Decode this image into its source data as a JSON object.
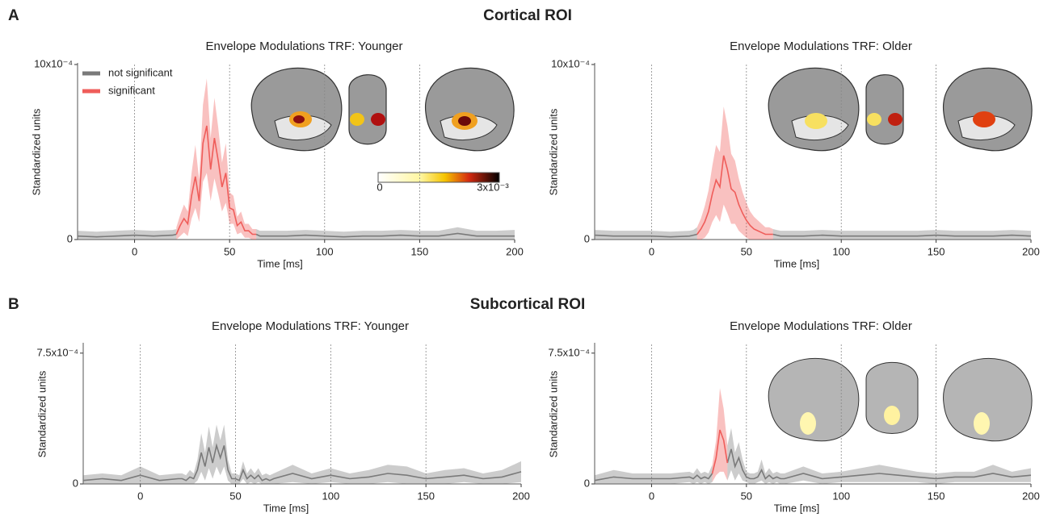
{
  "panels": [
    {
      "letter": "A",
      "title": "Cortical ROI"
    },
    {
      "letter": "B",
      "title": "Subcortical ROI"
    }
  ],
  "colorbar": {
    "min_label": "0",
    "max_label": "3x10⁻³"
  },
  "chart_data": [
    {
      "type": "line",
      "title": "Envelope Modulations TRF: Younger",
      "xlabel": "Time [ms]",
      "ylabel": "Standardized units",
      "xlim": [
        -30,
        200
      ],
      "xticks": [
        0,
        50,
        100,
        150,
        200
      ],
      "ylim": [
        0,
        10
      ],
      "yticks": [
        0,
        {
          "value": 10,
          "label": "10x10⁻⁴"
        }
      ],
      "legend": "upper left",
      "vlines": true,
      "x": [
        -30,
        -20,
        -10,
        0,
        10,
        20,
        22,
        24,
        26,
        28,
        30,
        32,
        34,
        36,
        38,
        40,
        42,
        44,
        46,
        48,
        50,
        52,
        54,
        56,
        58,
        60,
        62,
        64,
        66,
        68,
        70,
        80,
        90,
        100,
        110,
        120,
        130,
        140,
        150,
        160,
        170,
        180,
        190,
        200
      ],
      "series": [
        {
          "name": "not significant",
          "color": "#7a7a7a",
          "values": [
            0.2,
            0.15,
            0.2,
            0.25,
            0.2,
            0.25,
            0.3,
            null,
            null,
            null,
            null,
            null,
            null,
            null,
            null,
            null,
            null,
            null,
            null,
            null,
            null,
            null,
            null,
            null,
            null,
            null,
            null,
            0.3,
            0.2,
            0.2,
            0.2,
            0.2,
            0.25,
            0.2,
            0.15,
            0.2,
            0.2,
            0.25,
            0.2,
            0.2,
            0.35,
            0.2,
            0.2,
            0.2
          ],
          "errors": [
            0.3,
            0.3,
            0.3,
            0.3,
            0.3,
            0.3,
            0.3,
            null,
            null,
            null,
            null,
            null,
            null,
            null,
            null,
            null,
            null,
            null,
            null,
            null,
            null,
            null,
            null,
            null,
            null,
            null,
            null,
            0.3,
            0.3,
            0.3,
            0.3,
            0.3,
            0.3,
            0.3,
            0.3,
            0.3,
            0.3,
            0.3,
            0.3,
            0.3,
            0.35,
            0.3,
            0.3,
            0.35
          ]
        },
        {
          "name": "significant",
          "color": "#ef5d5a",
          "values": [
            null,
            null,
            null,
            null,
            null,
            null,
            0.3,
            0.8,
            1.2,
            0.9,
            2.5,
            3.6,
            2.2,
            5.5,
            6.5,
            4.0,
            5.8,
            4.5,
            3.0,
            3.8,
            1.8,
            1.7,
            0.8,
            1.0,
            0.5,
            0.5,
            0.3,
            0.3,
            null,
            null,
            null,
            null,
            null,
            null,
            null,
            null,
            null,
            null,
            null,
            null,
            null,
            null,
            null,
            null
          ],
          "errors": [
            null,
            null,
            null,
            null,
            null,
            null,
            0.4,
            0.6,
            0.8,
            0.7,
            1.3,
            1.8,
            1.2,
            2.2,
            2.7,
            1.8,
            2.3,
            1.9,
            1.4,
            1.7,
            0.9,
            0.8,
            0.5,
            0.6,
            0.4,
            0.4,
            0.3,
            0.3,
            null,
            null,
            null,
            null,
            null,
            null,
            null,
            null,
            null,
            null,
            null,
            null,
            null,
            null,
            null,
            null
          ]
        }
      ]
    },
    {
      "type": "line",
      "title": "Envelope Modulations TRF: Older",
      "xlabel": "Time [ms]",
      "ylabel": "Standardized units",
      "xlim": [
        -30,
        200
      ],
      "xticks": [
        0,
        50,
        100,
        150,
        200
      ],
      "ylim": [
        0,
        10
      ],
      "yticks": [
        0,
        {
          "value": 10,
          "label": "10x10⁻⁴"
        }
      ],
      "vlines": true,
      "x": [
        -30,
        -20,
        -10,
        0,
        10,
        20,
        22,
        24,
        26,
        28,
        30,
        32,
        34,
        36,
        38,
        40,
        42,
        44,
        46,
        48,
        50,
        52,
        54,
        56,
        58,
        60,
        62,
        64,
        66,
        68,
        70,
        80,
        90,
        100,
        110,
        120,
        130,
        140,
        150,
        160,
        170,
        180,
        190,
        200
      ],
      "series": [
        {
          "color": "#7a7a7a",
          "values": [
            0.25,
            0.2,
            0.2,
            0.2,
            0.15,
            0.2,
            0.25,
            0.3,
            null,
            null,
            null,
            null,
            null,
            null,
            null,
            null,
            null,
            null,
            null,
            null,
            null,
            null,
            null,
            null,
            null,
            null,
            null,
            0.3,
            0.25,
            0.2,
            0.2,
            0.2,
            0.25,
            0.2,
            0.2,
            0.2,
            0.2,
            0.2,
            0.25,
            0.2,
            0.2,
            0.2,
            0.25,
            0.2
          ],
          "errors": [
            0.3,
            0.3,
            0.3,
            0.3,
            0.3,
            0.3,
            0.3,
            0.4,
            null,
            null,
            null,
            null,
            null,
            null,
            null,
            null,
            null,
            null,
            null,
            null,
            null,
            null,
            null,
            null,
            null,
            null,
            null,
            0.3,
            0.3,
            0.3,
            0.3,
            0.3,
            0.3,
            0.3,
            0.3,
            0.3,
            0.3,
            0.3,
            0.3,
            0.3,
            0.3,
            0.3,
            0.3,
            0.3
          ]
        },
        {
          "color": "#ef5d5a",
          "values": [
            null,
            null,
            null,
            null,
            null,
            null,
            null,
            0.3,
            0.6,
            1.0,
            1.6,
            2.6,
            3.4,
            3.0,
            4.8,
            4.0,
            2.9,
            2.7,
            2.0,
            1.5,
            1.1,
            0.8,
            0.6,
            0.5,
            0.4,
            0.3,
            0.3,
            0.3,
            null,
            null,
            null,
            null,
            null,
            null,
            null,
            null,
            null,
            null,
            null,
            null,
            null,
            null,
            null,
            null
          ],
          "errors": [
            null,
            null,
            null,
            null,
            null,
            null,
            null,
            0.4,
            0.6,
            0.9,
            1.2,
            1.6,
            2.0,
            2.0,
            2.8,
            2.5,
            2.0,
            1.8,
            1.5,
            1.2,
            1.0,
            0.8,
            0.7,
            0.6,
            0.5,
            0.4,
            0.4,
            0.3,
            null,
            null,
            null,
            null,
            null,
            null,
            null,
            null,
            null,
            null,
            null,
            null,
            null,
            null,
            null,
            null
          ]
        }
      ]
    },
    {
      "type": "line",
      "title": "Envelope Modulations TRF: Younger",
      "xlabel": "Time [ms]",
      "ylabel": "Standardized units",
      "xlim": [
        -30,
        200
      ],
      "xticks": [
        0,
        50,
        100,
        150,
        200
      ],
      "ylim": [
        0,
        8
      ],
      "yticks": [
        0,
        {
          "value": 7.5,
          "label": "7.5x10⁻⁴"
        }
      ],
      "vlines": true,
      "x": [
        -30,
        -20,
        -10,
        0,
        10,
        20,
        22,
        24,
        26,
        28,
        30,
        32,
        34,
        36,
        38,
        40,
        42,
        44,
        46,
        48,
        50,
        52,
        54,
        56,
        58,
        60,
        62,
        64,
        66,
        68,
        70,
        80,
        90,
        100,
        110,
        120,
        130,
        140,
        150,
        160,
        170,
        180,
        190,
        200
      ],
      "series": [
        {
          "color": "#7a7a7a",
          "values": [
            0.2,
            0.3,
            0.2,
            0.5,
            0.2,
            0.3,
            0.3,
            0.2,
            0.4,
            0.3,
            0.8,
            1.8,
            1.0,
            2.1,
            1.2,
            2.2,
            1.5,
            2.2,
            0.8,
            0.3,
            0.3,
            0.2,
            0.8,
            0.3,
            0.5,
            0.3,
            0.5,
            0.2,
            0.3,
            0.2,
            0.3,
            0.6,
            0.3,
            0.5,
            0.3,
            0.4,
            0.6,
            0.5,
            0.3,
            0.4,
            0.5,
            0.3,
            0.4,
            0.7
          ],
          "errors": [
            0.3,
            0.3,
            0.3,
            0.5,
            0.3,
            0.3,
            0.3,
            0.3,
            0.4,
            0.3,
            0.6,
            1.1,
            0.8,
            1.2,
            0.9,
            1.2,
            1.0,
            1.2,
            0.6,
            0.3,
            0.3,
            0.3,
            0.5,
            0.3,
            0.4,
            0.3,
            0.4,
            0.3,
            0.3,
            0.3,
            0.3,
            0.5,
            0.3,
            0.4,
            0.3,
            0.4,
            0.5,
            0.5,
            0.3,
            0.4,
            0.4,
            0.3,
            0.4,
            0.6
          ]
        }
      ]
    },
    {
      "type": "line",
      "title": "Envelope Modulations TRF: Older",
      "xlabel": "Time [ms]",
      "ylabel": "Standardized units",
      "xlim": [
        -30,
        200
      ],
      "xticks": [
        0,
        50,
        100,
        150,
        200
      ],
      "ylim": [
        0,
        8
      ],
      "yticks": [
        0,
        {
          "value": 7.5,
          "label": "7.5x10⁻⁴"
        }
      ],
      "vlines": true,
      "x": [
        -30,
        -20,
        -10,
        0,
        10,
        20,
        22,
        24,
        26,
        28,
        30,
        32,
        34,
        36,
        38,
        40,
        42,
        44,
        46,
        48,
        50,
        52,
        54,
        56,
        58,
        60,
        62,
        64,
        66,
        68,
        70,
        80,
        90,
        100,
        110,
        120,
        130,
        140,
        150,
        160,
        170,
        180,
        190,
        200
      ],
      "series": [
        {
          "color": "#7a7a7a",
          "values": [
            0.2,
            0.4,
            0.3,
            0.3,
            0.3,
            0.4,
            0.3,
            0.5,
            0.3,
            0.4,
            0.3,
            0.6,
            null,
            null,
            null,
            1.2,
            2.0,
            1.0,
            1.5,
            0.8,
            0.4,
            0.3,
            0.3,
            0.4,
            0.8,
            0.3,
            0.5,
            0.3,
            0.4,
            0.3,
            0.3,
            0.6,
            0.3,
            0.4,
            0.5,
            0.6,
            0.5,
            0.4,
            0.3,
            0.4,
            0.4,
            0.6,
            0.4,
            0.5
          ],
          "errors": [
            0.3,
            0.4,
            0.3,
            0.3,
            0.3,
            0.3,
            0.3,
            0.4,
            0.3,
            0.3,
            0.3,
            0.5,
            null,
            null,
            null,
            1.0,
            1.2,
            0.8,
            0.9,
            0.6,
            0.3,
            0.3,
            0.3,
            0.3,
            0.6,
            0.3,
            0.4,
            0.3,
            0.3,
            0.3,
            0.3,
            0.4,
            0.3,
            0.3,
            0.4,
            0.5,
            0.4,
            0.3,
            0.3,
            0.3,
            0.3,
            0.5,
            0.3,
            0.4
          ]
        },
        {
          "color": "#ef5d5a",
          "values": [
            null,
            null,
            null,
            null,
            null,
            null,
            null,
            null,
            null,
            null,
            null,
            0.6,
            1.5,
            3.1,
            2.5,
            1.2,
            null,
            null,
            null,
            null,
            null,
            null,
            null,
            null,
            null,
            null,
            null,
            null,
            null,
            null,
            null,
            null,
            null,
            null,
            null,
            null,
            null,
            null,
            null,
            null,
            null,
            null,
            null,
            null
          ],
          "errors": [
            null,
            null,
            null,
            null,
            null,
            null,
            null,
            null,
            null,
            null,
            null,
            0.5,
            1.0,
            2.4,
            1.8,
            1.0,
            null,
            null,
            null,
            null,
            null,
            null,
            null,
            null,
            null,
            null,
            null,
            null,
            null,
            null,
            null,
            null,
            null,
            null,
            null,
            null,
            null,
            null,
            null,
            null,
            null,
            null,
            null,
            null
          ]
        }
      ]
    }
  ]
}
